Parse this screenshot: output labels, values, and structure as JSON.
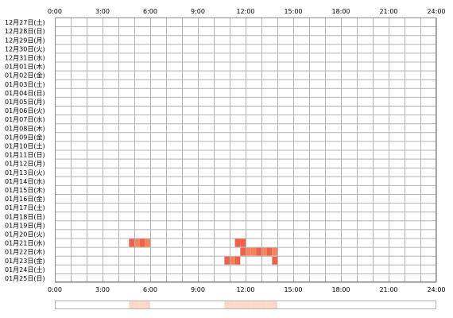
{
  "chart_data": {
    "type": "heatmap",
    "x_ticks": [
      "0:00",
      "3:00",
      "6:00",
      "9:00",
      "12:00",
      "15:00",
      "18:00",
      "21:00",
      "24:00"
    ],
    "x_range_hours": [
      0,
      24
    ],
    "cell_minutes": 20,
    "grid": true,
    "rows": [
      "12月27日(土)",
      "12月28日(日)",
      "12月29日(月)",
      "12月30日(火)",
      "12月31日(水)",
      "01月01日(木)",
      "01月02日(金)",
      "01月03日(土)",
      "01月04日(日)",
      "01月05日(月)",
      "01月06日(火)",
      "01月07日(水)",
      "01月08日(木)",
      "01月09日(金)",
      "01月10日(土)",
      "01月11日(日)",
      "01月12日(月)",
      "01月13日(火)",
      "01月14日(水)",
      "01月15日(木)",
      "01月16日(金)",
      "01月17日(土)",
      "01月18日(日)",
      "01月19日(月)",
      "01月20日(火)",
      "01月21日(水)",
      "01月22日(木)",
      "01月23日(金)",
      "01月24日(土)",
      "01月25日(日)"
    ],
    "active_colors": [
      "#f0614a",
      "#f5845c"
    ],
    "summary_color": "#fbd9c8",
    "events": [
      {
        "row": "01月21日(水)",
        "start": "4:40",
        "end": "5:00",
        "color": "#f0614a"
      },
      {
        "row": "01月21日(水)",
        "start": "5:00",
        "end": "5:20",
        "color": "#f5845c"
      },
      {
        "row": "01月21日(水)",
        "start": "5:20",
        "end": "5:40",
        "color": "#f0614a"
      },
      {
        "row": "01月21日(水)",
        "start": "5:40",
        "end": "6:00",
        "color": "#f5845c"
      },
      {
        "row": "01月21日(水)",
        "start": "11:20",
        "end": "11:40",
        "color": "#f0614a"
      },
      {
        "row": "01月21日(水)",
        "start": "11:40",
        "end": "12:00",
        "color": "#f0614a"
      },
      {
        "row": "01月22日(木)",
        "start": "11:40",
        "end": "12:00",
        "color": "#f0614a"
      },
      {
        "row": "01月22日(木)",
        "start": "12:00",
        "end": "12:20",
        "color": "#f5845c"
      },
      {
        "row": "01月22日(木)",
        "start": "12:20",
        "end": "12:40",
        "color": "#f5845c"
      },
      {
        "row": "01月22日(木)",
        "start": "12:40",
        "end": "13:00",
        "color": "#f0614a"
      },
      {
        "row": "01月22日(木)",
        "start": "13:00",
        "end": "13:20",
        "color": "#f5845c"
      },
      {
        "row": "01月22日(木)",
        "start": "13:20",
        "end": "13:40",
        "color": "#f0614a"
      },
      {
        "row": "01月22日(木)",
        "start": "13:40",
        "end": "14:00",
        "color": "#f5845c"
      },
      {
        "row": "01月23日(金)",
        "start": "10:40",
        "end": "11:00",
        "color": "#f0614a"
      },
      {
        "row": "01月23日(金)",
        "start": "11:00",
        "end": "11:20",
        "color": "#f5845c"
      },
      {
        "row": "01月23日(金)",
        "start": "11:20",
        "end": "11:40",
        "color": "#f0614a"
      },
      {
        "row": "01月23日(金)",
        "start": "13:40",
        "end": "14:00",
        "color": "#f0614a"
      }
    ]
  }
}
